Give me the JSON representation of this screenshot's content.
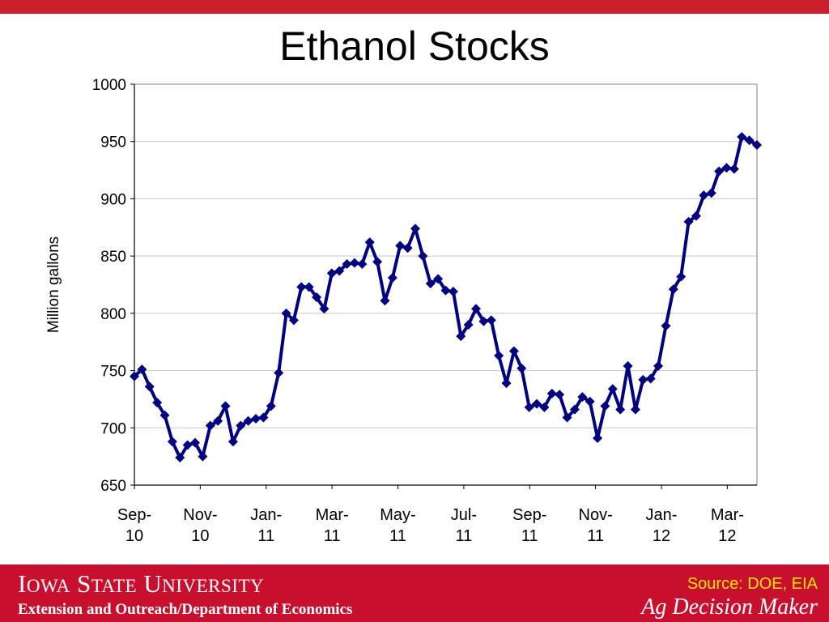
{
  "header": {
    "title": "Ethanol Stocks"
  },
  "footer": {
    "university": "Iowa State University",
    "department": "Extension and Outreach/Department of Economics",
    "source": "Source: DOE, EIA",
    "brand": "Ag Decision Maker"
  },
  "colors": {
    "line": "#000080",
    "brand_red": "#c8102e",
    "source_text": "#ffe600"
  },
  "chart_data": {
    "type": "line",
    "title": "Ethanol Stocks",
    "xlabel": "",
    "ylabel": "Million gallons",
    "ylim": [
      650,
      1000
    ],
    "yticks": [
      650,
      700,
      750,
      800,
      850,
      900,
      950,
      1000
    ],
    "grid": true,
    "legend": "none",
    "x_tick_labels": [
      [
        "Sep-",
        "10"
      ],
      [
        "Nov-",
        "10"
      ],
      [
        "Jan-",
        "11"
      ],
      [
        "Mar-",
        "11"
      ],
      [
        "May-",
        "11"
      ],
      [
        "Jul-",
        "11"
      ],
      [
        "Sep-",
        "11"
      ],
      [
        "Nov-",
        "11"
      ],
      [
        "Jan-",
        "12"
      ],
      [
        "Mar-",
        "12"
      ]
    ],
    "series": [
      {
        "values": [
          745,
          751,
          736,
          722,
          711,
          688,
          674,
          685,
          687,
          675,
          702,
          706,
          719,
          688,
          702,
          706,
          708,
          709,
          719,
          748,
          800,
          794,
          823,
          823,
          814,
          804,
          835,
          837,
          843,
          844,
          843,
          862,
          845,
          811,
          831,
          859,
          857,
          874,
          850,
          826,
          830,
          820,
          819,
          780,
          790,
          804,
          793,
          794,
          763,
          739,
          767,
          752,
          718,
          721,
          718,
          730,
          729,
          709,
          716,
          727,
          723,
          691,
          719,
          734,
          716,
          754,
          716,
          742,
          743,
          754,
          789,
          821,
          832,
          880,
          885,
          903,
          905,
          924,
          927,
          926,
          954,
          951,
          947
        ]
      }
    ]
  }
}
